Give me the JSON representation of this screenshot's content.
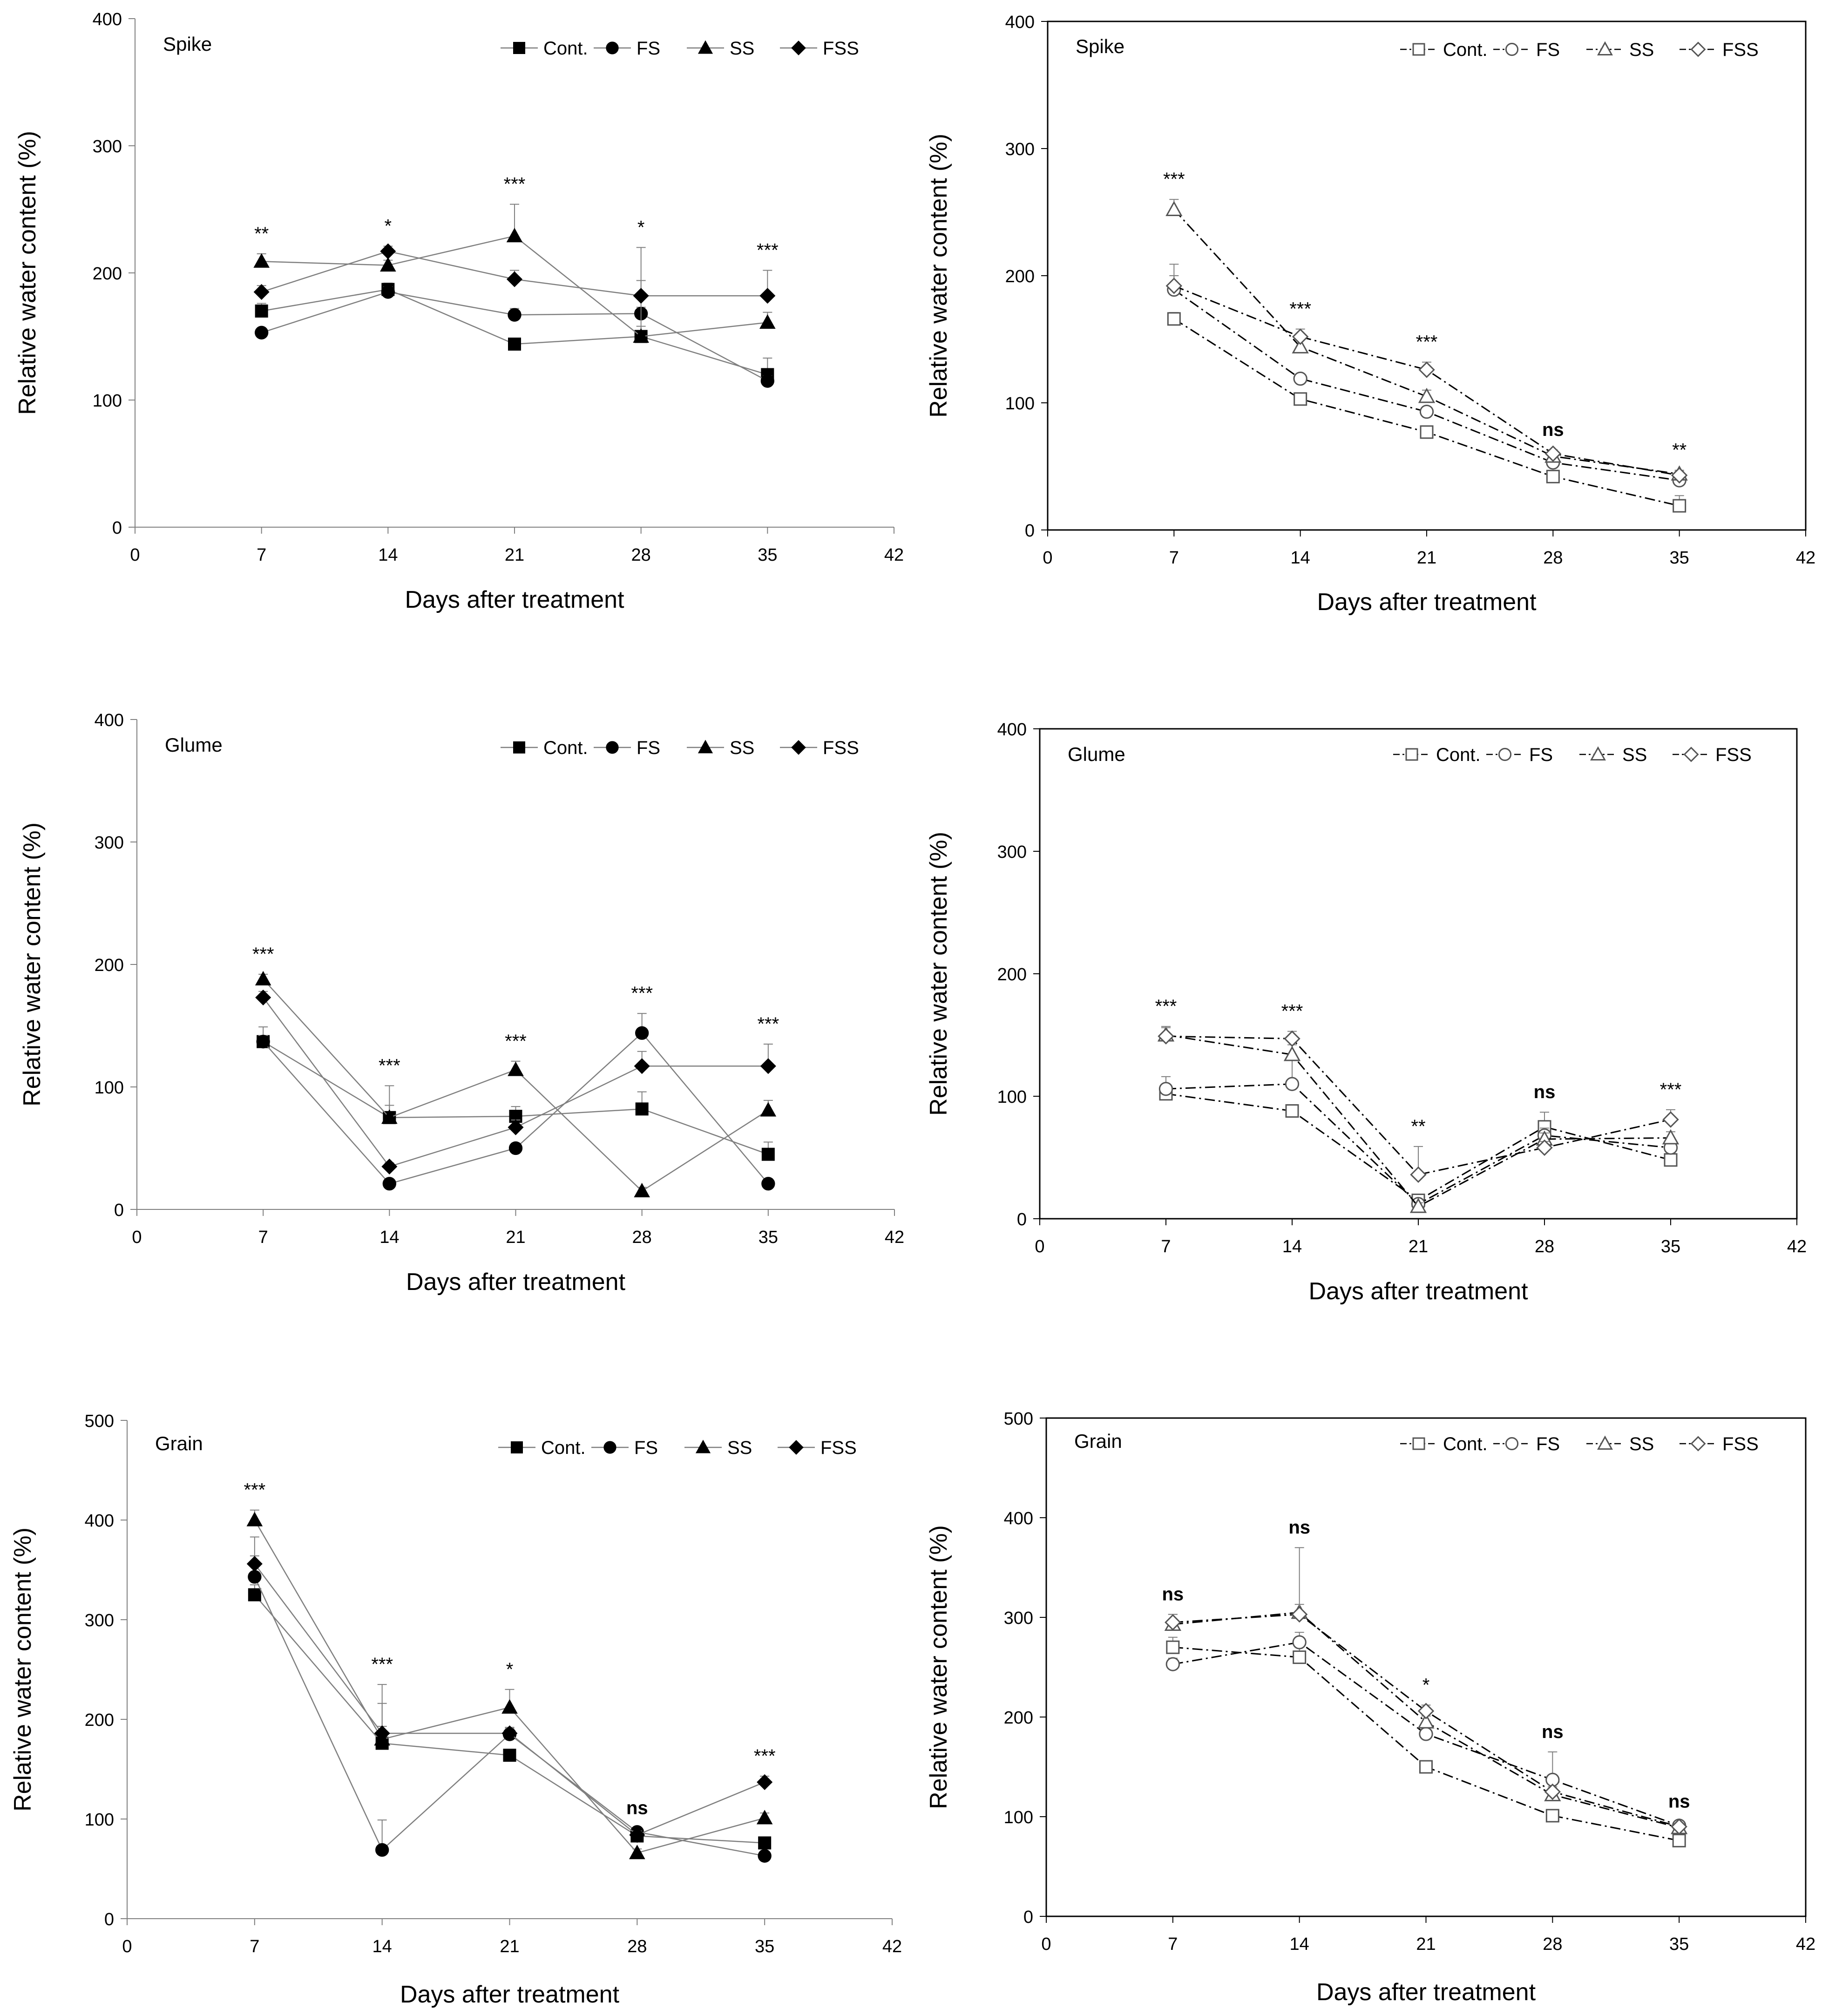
{
  "chart_data": [
    {
      "type": "line",
      "marker_style": "filled",
      "line_style": "solid",
      "frame": false,
      "title": "Spike",
      "xlabel": "Days after treatment",
      "ylabel": "Relative water content (%)",
      "xlim": [
        0,
        42
      ],
      "ylim": [
        0,
        400
      ],
      "xticks": [
        "0",
        "7",
        "14",
        "21",
        "28",
        "35",
        "42"
      ],
      "yticks": [
        "0",
        "100",
        "200",
        "300",
        "400"
      ],
      "x": [
        7,
        14,
        21,
        28,
        35
      ],
      "series": [
        {
          "name": "Cont.",
          "marker": "square",
          "values": [
            170,
            187,
            144,
            150,
            120
          ],
          "err": [
            6,
            5,
            4,
            8,
            13
          ]
        },
        {
          "name": "FS",
          "marker": "circle",
          "values": [
            153,
            185,
            167,
            168,
            115
          ],
          "err": [
            3,
            4,
            5,
            5,
            4
          ]
        },
        {
          "name": "SS",
          "marker": "triangle",
          "values": [
            209,
            206,
            229,
            150,
            161
          ],
          "err": [
            6,
            4,
            25,
            70,
            8
          ]
        },
        {
          "name": "FSS",
          "marker": "diamond",
          "values": [
            185,
            217,
            195,
            182,
            182
          ],
          "err": [
            5,
            4,
            7,
            12,
            20
          ]
        }
      ],
      "significance": [
        "**",
        "*",
        "***",
        "*",
        "***"
      ]
    },
    {
      "type": "line",
      "marker_style": "open",
      "line_style": "dashdot",
      "frame": true,
      "title": "Spike",
      "xlabel": "Days after treatment",
      "ylabel": "Relative water content (%)",
      "xlim": [
        0,
        42
      ],
      "ylim": [
        0,
        400
      ],
      "xticks": [
        "0",
        "7",
        "14",
        "21",
        "28",
        "35",
        "42"
      ],
      "yticks": [
        "0",
        "100",
        "200",
        "300",
        "400"
      ],
      "x": [
        7,
        14,
        21,
        28,
        35
      ],
      "series": [
        {
          "name": "Cont.",
          "marker": "square",
          "values": [
            166,
            103,
            77,
            42,
            19
          ],
          "err": [
            5,
            3,
            3,
            2,
            8
          ]
        },
        {
          "name": "FS",
          "marker": "circle",
          "values": [
            189,
            119,
            93,
            53,
            39
          ],
          "err": [
            20,
            3,
            4,
            3,
            3
          ]
        },
        {
          "name": "SS",
          "marker": "triangle",
          "values": [
            252,
            144,
            105,
            58,
            44
          ],
          "err": [
            8,
            6,
            5,
            3,
            3
          ]
        },
        {
          "name": "FSS",
          "marker": "diamond",
          "values": [
            192,
            152,
            126,
            60,
            43
          ],
          "err": [
            8,
            6,
            6,
            3,
            3
          ]
        }
      ],
      "significance": [
        "***",
        "***",
        "***",
        "ns",
        "**"
      ]
    },
    {
      "type": "line",
      "marker_style": "filled",
      "line_style": "solid",
      "frame": false,
      "title": "Glume",
      "xlabel": "Days after treatment",
      "ylabel": "Relative water content (%)",
      "xlim": [
        0,
        42
      ],
      "ylim": [
        0,
        400
      ],
      "xticks": [
        "0",
        "7",
        "14",
        "21",
        "28",
        "35",
        "42"
      ],
      "yticks": [
        "0",
        "100",
        "200",
        "300",
        "400"
      ],
      "x": [
        7,
        14,
        21,
        28,
        35
      ],
      "series": [
        {
          "name": "Cont.",
          "marker": "square",
          "values": [
            137,
            75,
            76,
            82,
            45
          ],
          "err": [
            12,
            26,
            8,
            14,
            10
          ]
        },
        {
          "name": "FS",
          "marker": "circle",
          "values": [
            137,
            21,
            50,
            144,
            21
          ],
          "err": [
            5,
            3,
            4,
            16,
            4
          ]
        },
        {
          "name": "SS",
          "marker": "triangle",
          "values": [
            188,
            75,
            114,
            15,
            81
          ],
          "err": [
            4,
            10,
            7,
            3,
            8
          ]
        },
        {
          "name": "FSS",
          "marker": "diamond",
          "values": [
            173,
            35,
            67,
            117,
            117
          ],
          "err": [
            5,
            3,
            6,
            12,
            18
          ]
        }
      ],
      "significance": [
        "***",
        "***",
        "***",
        "***",
        "***"
      ]
    },
    {
      "type": "line",
      "marker_style": "open",
      "line_style": "dashdot",
      "frame": true,
      "title": "Glume",
      "xlabel": "Days after treatment",
      "ylabel": "Relative water content (%)",
      "xlim": [
        0,
        42
      ],
      "ylim": [
        0,
        400
      ],
      "xticks": [
        "0",
        "7",
        "14",
        "21",
        "28",
        "35",
        "42"
      ],
      "yticks": [
        "0",
        "100",
        "200",
        "300",
        "400"
      ],
      "x": [
        7,
        14,
        21,
        28,
        35
      ],
      "series": [
        {
          "name": "Cont.",
          "marker": "square",
          "values": [
            102,
            88,
            15,
            75,
            48
          ],
          "err": [
            5,
            3,
            3,
            12,
            4
          ]
        },
        {
          "name": "FS",
          "marker": "circle",
          "values": [
            106,
            110,
            12,
            68,
            58
          ],
          "err": [
            10,
            20,
            3,
            6,
            6
          ]
        },
        {
          "name": "SS",
          "marker": "triangle",
          "values": [
            150,
            134,
            10,
            65,
            66
          ],
          "err": [
            6,
            8,
            3,
            5,
            5
          ]
        },
        {
          "name": "FSS",
          "marker": "diamond",
          "values": [
            149,
            147,
            36,
            58,
            81
          ],
          "err": [
            8,
            6,
            23,
            5,
            8
          ]
        }
      ],
      "significance": [
        "***",
        "***",
        "**",
        "ns",
        "***"
      ]
    },
    {
      "type": "line",
      "marker_style": "filled",
      "line_style": "solid",
      "frame": false,
      "title": "Grain",
      "xlabel": "Days after treatment",
      "ylabel": "Relative water content (%)",
      "xlim": [
        0,
        42
      ],
      "ylim": [
        0,
        500
      ],
      "xticks": [
        "0",
        "7",
        "14",
        "21",
        "28",
        "35",
        "42"
      ],
      "yticks": [
        "0",
        "100",
        "200",
        "300",
        "400",
        "500"
      ],
      "x": [
        7,
        14,
        21,
        28,
        35
      ],
      "series": [
        {
          "name": "Cont.",
          "marker": "square",
          "values": [
            325,
            176,
            164,
            83,
            76
          ],
          "err": [
            10,
            40,
            6,
            5,
            5
          ]
        },
        {
          "name": "FS",
          "marker": "circle",
          "values": [
            343,
            69,
            185,
            87,
            63
          ],
          "err": [
            40,
            30,
            6,
            4,
            4
          ]
        },
        {
          "name": "SS",
          "marker": "triangle",
          "values": [
            400,
            180,
            212,
            66,
            101
          ],
          "err": [
            10,
            55,
            18,
            4,
            5
          ]
        },
        {
          "name": "FSS",
          "marker": "diamond",
          "values": [
            356,
            186,
            186,
            84,
            137
          ],
          "err": [
            8,
            7,
            6,
            4,
            6
          ]
        }
      ],
      "significance": [
        "***",
        "***",
        "*",
        "ns",
        "***"
      ]
    },
    {
      "type": "line",
      "marker_style": "open",
      "line_style": "dashdot",
      "frame": true,
      "title": "Grain",
      "xlabel": "Days after treatment",
      "ylabel": "Relative water content (%)",
      "xlim": [
        0,
        42
      ],
      "ylim": [
        0,
        500
      ],
      "xticks": [
        "0",
        "7",
        "14",
        "21",
        "28",
        "35",
        "42"
      ],
      "yticks": [
        "0",
        "100",
        "200",
        "300",
        "400",
        "500"
      ],
      "x": [
        7,
        14,
        21,
        28,
        35
      ],
      "series": [
        {
          "name": "Cont.",
          "marker": "square",
          "values": [
            270,
            260,
            150,
            101,
            76
          ],
          "err": [
            10,
            10,
            5,
            5,
            4
          ]
        },
        {
          "name": "FS",
          "marker": "circle",
          "values": [
            253,
            275,
            183,
            137,
            91
          ],
          "err": [
            6,
            10,
            6,
            28,
            4
          ]
        },
        {
          "name": "SS",
          "marker": "triangle",
          "values": [
            293,
            305,
            195,
            122,
            89
          ],
          "err": [
            10,
            65,
            6,
            5,
            3
          ]
        },
        {
          "name": "FSS",
          "marker": "diamond",
          "values": [
            295,
            303,
            206,
            125,
            90
          ],
          "err": [
            8,
            10,
            6,
            5,
            3
          ]
        }
      ],
      "significance": [
        "ns",
        "ns",
        "*",
        "ns",
        "ns"
      ]
    }
  ]
}
